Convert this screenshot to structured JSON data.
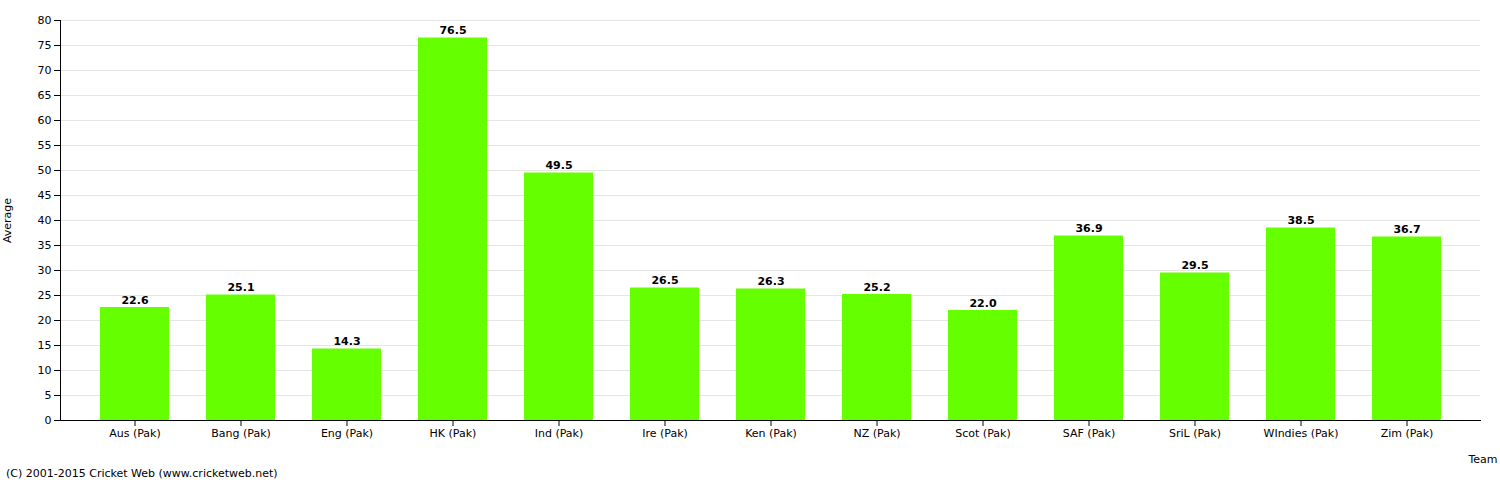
{
  "chart_data": {
    "type": "bar",
    "categories": [
      "Aus (Pak)",
      "Bang (Pak)",
      "Eng (Pak)",
      "HK (Pak)",
      "Ind (Pak)",
      "Ire (Pak)",
      "Ken (Pak)",
      "NZ (Pak)",
      "Scot (Pak)",
      "SAF (Pak)",
      "SriL (Pak)",
      "WIndies (Pak)",
      "Zim (Pak)"
    ],
    "values": [
      22.6,
      25.1,
      14.3,
      76.5,
      49.5,
      26.5,
      26.3,
      25.2,
      22.0,
      36.9,
      29.5,
      38.5,
      36.7
    ],
    "value_labels": [
      "22.6",
      "25.1",
      "14.3",
      "76.5",
      "49.5",
      "26.5",
      "26.3",
      "25.2",
      "22.0",
      "36.9",
      "29.5",
      "38.5",
      "36.7"
    ],
    "color": "#66ff00",
    "xlabel": "Team",
    "ylabel": "Average",
    "ylim": [
      0,
      80
    ],
    "yticks": [
      0,
      5,
      10,
      15,
      20,
      25,
      30,
      35,
      40,
      45,
      50,
      55,
      60,
      65,
      70,
      75,
      80
    ],
    "grid": true,
    "data_labels": true,
    "caption": "(C) 2001-2015 Cricket Web (www.cricketweb.net)"
  }
}
